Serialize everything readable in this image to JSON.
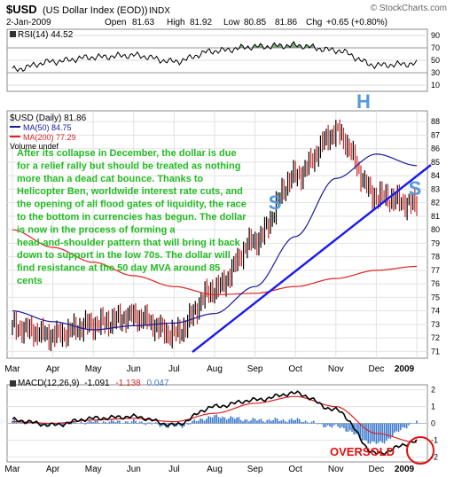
{
  "header": {
    "symbol": "$USD",
    "name": "(US Dollar Index (EOD))",
    "exchange": "INDX",
    "watermark": "© StockCharts.com",
    "date": "2-Jan-2009",
    "open_label": "Open",
    "open": "81.63",
    "high_label": "High",
    "high": "81.92",
    "low_label": "Low",
    "low": "80.85",
    "close": "81.86",
    "chg_label": "Chg",
    "chg": "+0.65 (+0.80%)"
  },
  "rsi_panel": {
    "label": "RSI(14) 44.52",
    "ticks": [
      "90",
      "70",
      "50",
      "30",
      "10"
    ]
  },
  "price_panel": {
    "legend": {
      "main": "$USD (Daily) 81.86",
      "ma50": "MA(50) 84.75",
      "ma200": "MA(200) 77.29",
      "volume": "Volume undef"
    },
    "ticks": [
      "88",
      "87",
      "86",
      "85",
      "84",
      "83",
      "82",
      "81",
      "80",
      "79",
      "78",
      "77",
      "76",
      "75",
      "74",
      "73",
      "72",
      "71"
    ],
    "pattern_labels": {
      "left_shoulder": "S",
      "head": "H",
      "right_shoulder": "S"
    },
    "annotation": [
      "After its collapse in December, the dollar is due",
      "for a relief rally but should be treated as nothing",
      "more than a dead cat bounce.  Thanks to",
      "Helicopter Ben, worldwide interest rate cuts, and",
      "the opening of all flood gates of liquidity, the race",
      "to the bottom in currencies has begun.  The dollar",
      "is now in the process of forming a",
      "head-and-shoulder pattern that will bring it back",
      "down to support in the low 70s.  The dollar will",
      "find resistance at the 50 day MVA around 85",
      "cents"
    ],
    "months": [
      "Mar",
      "Apr",
      "May",
      "Jun",
      "Jul",
      "Aug",
      "Sep",
      "Oct",
      "Nov",
      "Dec",
      "2009"
    ]
  },
  "macd_panel": {
    "label": "MACD(12,26,9)",
    "macd": "-1.091",
    "signal": "-1.138",
    "hist": "0.047",
    "ticks": [
      "2",
      "1",
      "0",
      "-1",
      "-2"
    ],
    "oversold": "OVERSOLD",
    "months": [
      "Mar",
      "Apr",
      "May",
      "Jun",
      "Jul",
      "Aug",
      "Sep",
      "Oct",
      "Nov",
      "Dec",
      "2009"
    ]
  },
  "colors": {
    "price": "#000000",
    "ma50": "#1a1aa0",
    "ma200": "#dd2222",
    "trendline": "#1a1aee",
    "annotation": "#22bb22",
    "hs_labels": "#5599dd",
    "rsi": "#000000",
    "rsi_ob": "#5a8a5a",
    "rsi_os": "#aa5555",
    "macd": "#000000",
    "signal": "#dd2222",
    "hist": "#3a7ad0",
    "oversold": "#dd1111"
  },
  "chart_data": {
    "type": "line",
    "x": [
      "Mar",
      "Apr",
      "May",
      "Jun",
      "Jul",
      "Aug",
      "Sep",
      "Oct",
      "Nov",
      "Dec",
      "2009"
    ],
    "series": [
      {
        "name": "$USD (Daily)",
        "values": [
          72.8,
          72.2,
          73.0,
          73.6,
          72.3,
          75.6,
          79.2,
          84.0,
          87.2,
          82.5,
          81.86
        ]
      },
      {
        "name": "MA(50)",
        "values": [
          74.0,
          73.2,
          72.6,
          72.9,
          73.1,
          73.8,
          75.8,
          79.5,
          83.8,
          85.6,
          84.75
        ]
      },
      {
        "name": "MA(200)",
        "values": [
          80.0,
          78.7,
          77.6,
          76.6,
          75.8,
          75.2,
          75.3,
          75.8,
          76.4,
          77.0,
          77.29
        ]
      }
    ],
    "ylim": [
      71,
      88
    ],
    "rsi": {
      "label": "RSI(14)",
      "last": 44.52,
      "values": [
        35,
        48,
        55,
        58,
        48,
        65,
        72,
        74,
        66,
        42,
        44.52
      ],
      "ylim": [
        0,
        100
      ]
    },
    "macd": {
      "label": "MACD(12,26,9)",
      "macd": [
        0.2,
        -0.1,
        0.3,
        0.4,
        -0.1,
        1.0,
        1.4,
        1.8,
        0.8,
        -1.8,
        -1.091
      ],
      "signal": [
        0.1,
        0.0,
        0.2,
        0.3,
        0.1,
        0.6,
        1.2,
        1.6,
        1.0,
        -0.6,
        -1.138
      ],
      "histogram_last": 0.047,
      "ylim": [
        -2,
        2
      ]
    }
  }
}
